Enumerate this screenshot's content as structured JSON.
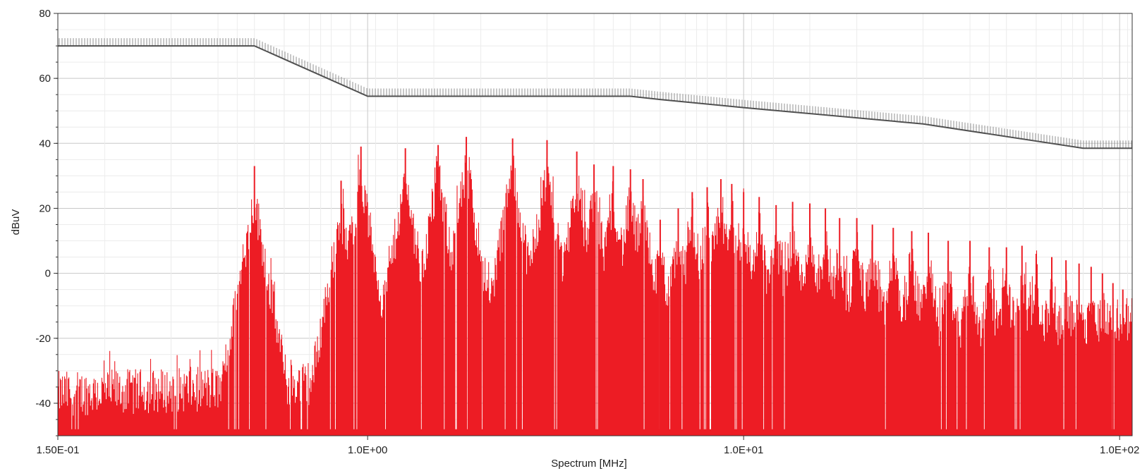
{
  "chart_data": {
    "type": "line",
    "title": "",
    "xlabel": "Spectrum [MHz]",
    "ylabel": "dBuV",
    "x_scale": "log",
    "xlim": [
      0.15,
      108
    ],
    "ylim": [
      -50,
      80
    ],
    "y_ticks": [
      80,
      60,
      40,
      20,
      0,
      -20,
      -40
    ],
    "y_tick_labels": [
      "80",
      "60",
      "40",
      "20",
      "0",
      "-20",
      "-40"
    ],
    "x_ticks": [
      0.15,
      1.0,
      10.0,
      100.0
    ],
    "x_tick_labels": [
      "1.50E-01",
      "1.0E+00",
      "1.0E+01",
      "1.0E+02"
    ],
    "grid": true,
    "legend": "none",
    "series": [
      {
        "kind": "limit",
        "color": "#505050",
        "x": [
          0.15,
          0.5,
          1.0,
          5.0,
          6.0,
          10.0,
          30.0,
          80.0,
          108.0
        ],
        "y": [
          70,
          70,
          54.5,
          54.5,
          53.5,
          51,
          46,
          38.5,
          38.5
        ]
      },
      {
        "kind": "spectrum",
        "color": "#ed1c24",
        "floor": -50,
        "peaks_x": [
          0.5,
          0.85,
          0.96,
          1.26,
          1.54,
          1.83,
          2.43,
          3.0,
          3.6,
          4.0,
          4.5,
          5.0,
          5.4,
          6.0,
          6.7,
          7.3,
          8.0,
          8.7,
          9.3,
          10.0,
          11.0,
          12.2,
          13.5,
          15.0,
          16.5,
          18.0,
          20.0,
          22.0,
          25.0,
          28.0,
          31.0,
          35.0,
          40.0,
          45.0,
          50.0,
          55.0,
          60.0,
          66.0,
          72.0,
          78.0,
          84.0,
          90.0,
          96.0,
          102.0
        ],
        "peaks_y": [
          33,
          28.5,
          39,
          38.5,
          39.5,
          42,
          41.5,
          41,
          37.5,
          33.5,
          33,
          32,
          29,
          16.5,
          20,
          25,
          26.5,
          29,
          27.5,
          25,
          23.5,
          21,
          22,
          21.5,
          20,
          17,
          17,
          15,
          14,
          13,
          12.5,
          10,
          10,
          8,
          8,
          8.5,
          6,
          5,
          4,
          3,
          2,
          0,
          -3,
          -5
        ],
        "noise_floor_y": [
          -37,
          -36,
          -35,
          -33,
          -30,
          -28,
          -26,
          -24,
          -22,
          -20,
          -18,
          -16,
          -14
        ],
        "noise_floor_x": [
          0.15,
          0.3,
          0.5,
          0.8,
          1.0,
          1.5,
          2.5,
          4.0,
          6.0,
          10.0,
          20.0,
          50.0,
          108.0
        ]
      }
    ]
  }
}
